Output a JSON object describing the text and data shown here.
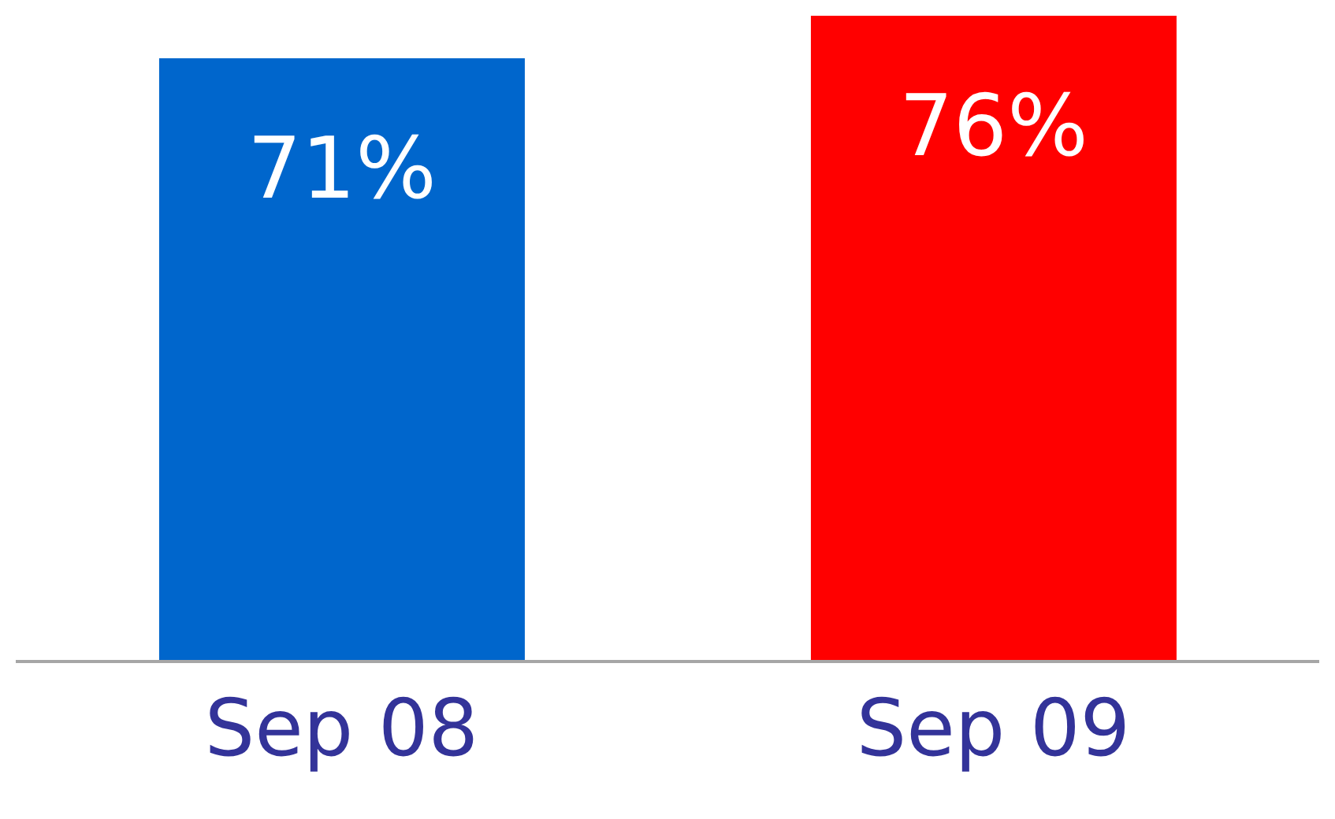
{
  "chart_data": {
    "type": "bar",
    "categories": [
      "Sep 08",
      "Sep 09"
    ],
    "values": [
      71,
      76
    ],
    "colors": [
      "#0066cc",
      "#ff0000"
    ],
    "value_labels": [
      "71%",
      "76%"
    ]
  }
}
